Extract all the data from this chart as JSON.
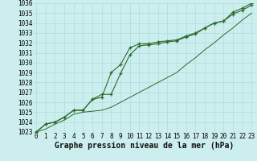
{
  "title": "Graphe pression niveau de la mer (hPa)",
  "bg_color": "#cceeee",
  "grid_color": "#aadddd",
  "line_color": "#2d6a2d",
  "hours": [
    0,
    1,
    2,
    3,
    4,
    5,
    6,
    7,
    8,
    9,
    10,
    11,
    12,
    13,
    14,
    15,
    16,
    17,
    18,
    19,
    20,
    21,
    22,
    23
  ],
  "line1": [
    1023.0,
    1023.3,
    1023.8,
    1024.2,
    1024.8,
    1025.0,
    1025.1,
    1025.2,
    1025.5,
    1026.0,
    1026.5,
    1027.0,
    1027.5,
    1028.0,
    1028.5,
    1029.0,
    1029.8,
    1030.5,
    1031.3,
    1032.0,
    1032.8,
    1033.5,
    1034.3,
    1035.0
  ],
  "line2": [
    1023.0,
    1023.8,
    1024.0,
    1024.5,
    1025.2,
    1025.2,
    1026.3,
    1026.5,
    1029.0,
    1029.8,
    1031.5,
    1031.9,
    1031.9,
    1032.1,
    1032.2,
    1032.3,
    1032.7,
    1033.0,
    1033.5,
    1034.0,
    1034.2,
    1035.1,
    1035.5,
    1036.0
  ],
  "line3": [
    1023.0,
    1023.8,
    1024.0,
    1024.5,
    1025.2,
    1025.2,
    1026.3,
    1026.8,
    1026.8,
    1028.9,
    1030.8,
    1031.7,
    1031.8,
    1031.9,
    1032.1,
    1032.2,
    1032.6,
    1032.9,
    1033.5,
    1034.0,
    1034.2,
    1034.9,
    1035.3,
    1035.8
  ],
  "ylim": [
    1023,
    1036
  ],
  "yticks": [
    1023,
    1024,
    1025,
    1026,
    1027,
    1028,
    1029,
    1030,
    1031,
    1032,
    1033,
    1034,
    1035,
    1036
  ],
  "title_fontsize": 7.0,
  "tick_fontsize": 5.5,
  "figsize": [
    3.2,
    2.0
  ],
  "dpi": 100
}
